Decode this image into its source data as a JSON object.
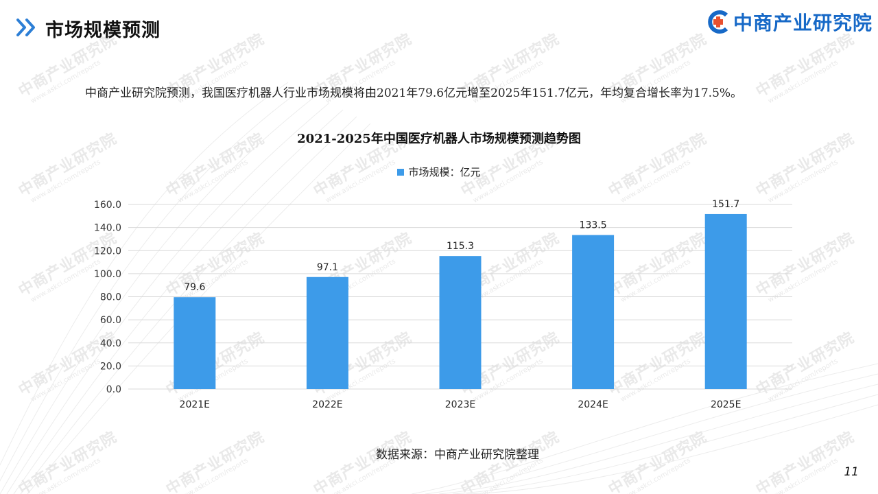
{
  "header": {
    "title": "市场规模预测",
    "brand_name": "中商产业研究院"
  },
  "intro_text": "中商产业研究院预测，我国医疗机器人行业市场规模将由2021年79.6亿元增至2025年151.7亿元，年均复合增长率为17.5%。",
  "source_text": "数据来源：中商产业研究院整理",
  "page_number": "11",
  "watermark": {
    "main": "中商产业研究院",
    "sub": "www.askci.com/reports"
  },
  "colors": {
    "accent": "#1769c7",
    "bar": "#3d9be9",
    "arrow": "#2d7fd6",
    "grid": "#d9d9d9"
  },
  "chart_data": {
    "type": "bar",
    "title": "2021-2025年中国医疗机器人市场规模预测趋势图",
    "categories": [
      "2021E",
      "2022E",
      "2023E",
      "2024E",
      "2025E"
    ],
    "series": [
      {
        "name": "市场规模：亿元",
        "values": [
          79.6,
          97.1,
          115.3,
          133.5,
          151.7
        ]
      }
    ],
    "data_labels": [
      "79.6",
      "97.1",
      "115.3",
      "133.5",
      "151.7"
    ],
    "ylim": [
      0,
      160
    ],
    "yticks": [
      "0.0",
      "20.0",
      "40.0",
      "60.0",
      "80.0",
      "100.0",
      "120.0",
      "140.0",
      "160.0"
    ],
    "xlabel": "",
    "ylabel": "",
    "grid": true,
    "legend_position": "top-center"
  }
}
